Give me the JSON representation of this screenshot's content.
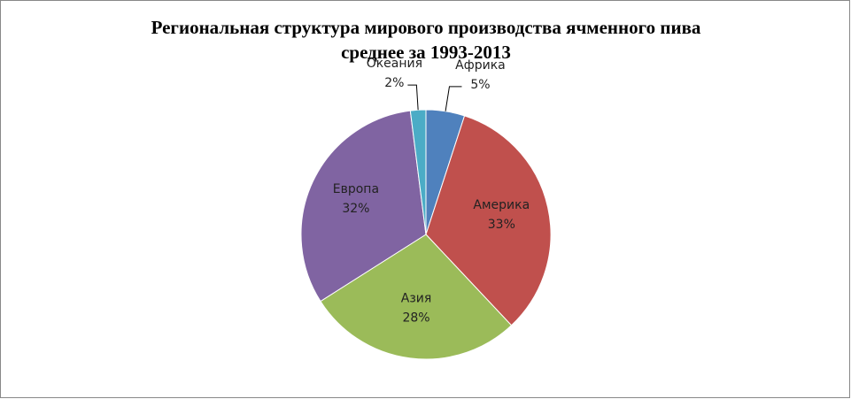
{
  "chart_data": {
    "type": "pie",
    "title_lines": [
      "Региональная структура мирового производства ячменного пива",
      "среднее за 1993-2013"
    ],
    "categories": [
      "Африка",
      "Америка",
      "Азия",
      "Европа",
      "Океания"
    ],
    "values": [
      5,
      33,
      28,
      32,
      2
    ],
    "value_labels": [
      "5%",
      "33%",
      "28%",
      "32%",
      "2%"
    ],
    "colors": [
      "#4f81bd",
      "#c0504d",
      "#9bbb59",
      "#8064a2",
      "#4bacc6"
    ]
  }
}
